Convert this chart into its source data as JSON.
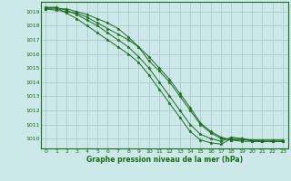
{
  "background_color": "#cce8e8",
  "grid_color": "#aacccc",
  "line_color": "#1a6b1a",
  "marker_color": "#1a6b1a",
  "title": "Graphe pression niveau de la mer (hPa)",
  "xlim": [
    -0.5,
    23.5
  ],
  "ylim": [
    1009.3,
    1019.7
  ],
  "yticks": [
    1010,
    1011,
    1012,
    1013,
    1014,
    1015,
    1016,
    1017,
    1018,
    1019
  ],
  "xticks": [
    0,
    1,
    2,
    3,
    4,
    5,
    6,
    7,
    8,
    9,
    10,
    11,
    12,
    13,
    14,
    15,
    16,
    17,
    18,
    19,
    20,
    21,
    22,
    23
  ],
  "series": [
    [
      1019.2,
      1019.1,
      1019.0,
      1018.9,
      1018.6,
      1018.2,
      1017.8,
      1017.4,
      1017.0,
      1016.5,
      1015.5,
      1014.8,
      1014.0,
      1013.0,
      1012.0,
      1011.0,
      1010.4,
      1010.0,
      1009.9,
      1009.8,
      1009.8,
      1009.8,
      1009.8,
      1009.8
    ],
    [
      1019.2,
      1019.2,
      1019.2,
      1019.0,
      1018.8,
      1018.5,
      1018.2,
      1017.8,
      1017.2,
      1016.5,
      1015.8,
      1015.0,
      1014.2,
      1013.2,
      1012.2,
      1011.1,
      1010.5,
      1010.1,
      1009.9,
      1009.9,
      1009.9,
      1009.9,
      1009.9,
      1009.9
    ],
    [
      1019.3,
      1019.3,
      1018.9,
      1018.5,
      1018.0,
      1017.5,
      1017.0,
      1016.5,
      1016.0,
      1015.4,
      1014.5,
      1013.5,
      1012.5,
      1011.5,
      1010.5,
      1009.9,
      1009.7,
      1009.6,
      1010.0,
      1010.0,
      1009.8,
      1009.8,
      1009.8,
      1009.8
    ],
    [
      1019.3,
      1019.3,
      1019.1,
      1018.8,
      1018.4,
      1018.0,
      1017.5,
      1017.0,
      1016.5,
      1015.8,
      1015.0,
      1014.0,
      1013.0,
      1012.0,
      1011.0,
      1010.3,
      1010.0,
      1009.8,
      1010.1,
      1010.0,
      1009.9,
      1009.8,
      1009.8,
      1009.8
    ]
  ]
}
